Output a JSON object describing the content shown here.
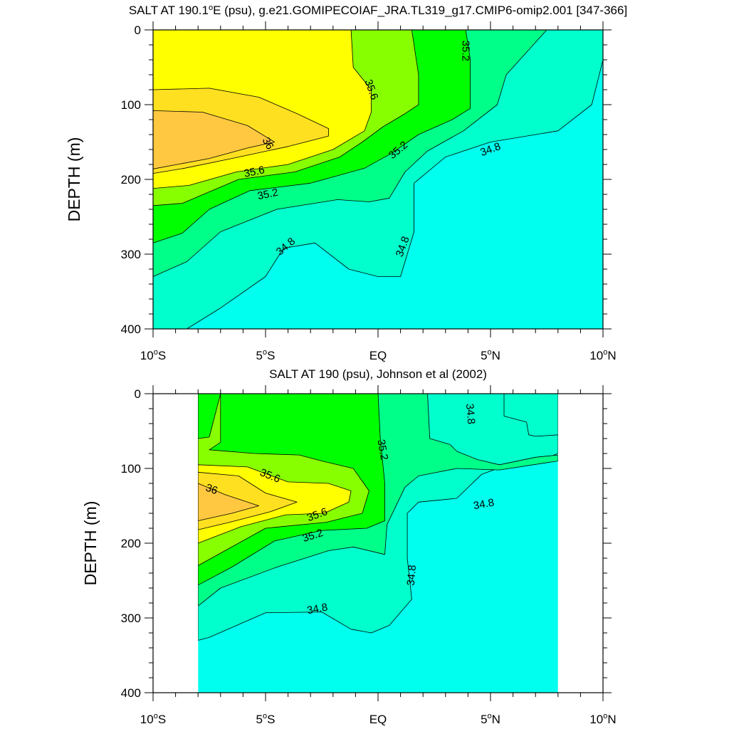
{
  "chart_data": [
    {
      "type": "contour",
      "title": "SALT AT 190.1°E (psu), g.e21.GOMIPECOIAF_JRA.TL319_g17.CMIP6-omip2.001 [347-366]",
      "title_parts": {
        "pre": "SALT AT 190.1",
        "sup": "o",
        "post": "E (psu), g.e21.GOMIPECOIAF_JRA.TL319_g17.CMIP6-omip2.001 [347-366]"
      },
      "ylabel": "DEPTH (m)",
      "xlabel": "",
      "xlim": [
        -10,
        10
      ],
      "ylim": [
        400,
        0
      ],
      "x_ticks": [
        {
          "value": -10,
          "main": "10",
          "sup": "o",
          "tail": "S"
        },
        {
          "value": -5,
          "main": "5",
          "sup": "o",
          "tail": "S"
        },
        {
          "value": 0,
          "main": "EQ",
          "sup": "",
          "tail": ""
        },
        {
          "value": 5,
          "main": "5",
          "sup": "o",
          "tail": "N"
        },
        {
          "value": 10,
          "main": "10",
          "sup": "o",
          "tail": "N"
        }
      ],
      "y_ticks": [
        {
          "value": 0,
          "label": "0"
        },
        {
          "value": 100,
          "label": "100"
        },
        {
          "value": 200,
          "label": "200"
        },
        {
          "value": 300,
          "label": "300"
        },
        {
          "value": 400,
          "label": "400"
        }
      ],
      "data_extent": {
        "x": [
          -10,
          10
        ],
        "depth": [
          0,
          400
        ]
      },
      "contour_levels": [
        34.8,
        35.0,
        35.2,
        35.4,
        35.6,
        35.8,
        36.0
      ],
      "contour_labels": [
        {
          "text": "35.2",
          "x": 3.9,
          "depth": 28,
          "angle": 90
        },
        {
          "text": "35.6",
          "x": -0.3,
          "depth": 80,
          "angle": 70
        },
        {
          "text": "36",
          "x": -4.9,
          "depth": 152,
          "angle": 60
        },
        {
          "text": "35.6",
          "x": -5.5,
          "depth": 190,
          "angle": -12
        },
        {
          "text": "35.2",
          "x": 0.9,
          "depth": 161,
          "angle": -40
        },
        {
          "text": "35.2",
          "x": -4.9,
          "depth": 220,
          "angle": -12
        },
        {
          "text": "34.8",
          "x": 5.0,
          "depth": 160,
          "angle": -20
        },
        {
          "text": "34.8",
          "x": -4.1,
          "depth": 290,
          "angle": -40
        },
        {
          "text": "34.8",
          "x": 1.1,
          "depth": 290,
          "angle": -70
        }
      ],
      "filled_bands": [
        {
          "level": "below 34.8",
          "color": "#00ffee",
          "outline": [
            [
              -10,
              400
            ],
            [
              10,
              400
            ],
            [
              10,
              0
            ],
            [
              -10,
              0
            ]
          ]
        },
        {
          "level": "34.8-35.0",
          "color": "#00ffcc",
          "outline": [
            [
              -10,
              0
            ],
            [
              10,
              0
            ],
            [
              10,
              40
            ],
            [
              9.5,
              100
            ],
            [
              8,
              135
            ],
            [
              5,
              150
            ],
            [
              3,
              170
            ],
            [
              1.6,
              205
            ],
            [
              1.6,
              270
            ],
            [
              1.0,
              330
            ],
            [
              0,
              330
            ],
            [
              -1.3,
              320
            ],
            [
              -2.8,
              285
            ],
            [
              -4.2,
              292
            ],
            [
              -5.0,
              330
            ],
            [
              -7.0,
              372
            ],
            [
              -8.5,
              400
            ],
            [
              -10,
              400
            ]
          ]
        },
        {
          "level": "35.0-35.2",
          "color": "#00ff88",
          "outline": [
            [
              -10,
              0
            ],
            [
              7.5,
              0
            ],
            [
              5.7,
              60
            ],
            [
              5.3,
              100
            ],
            [
              3.8,
              135
            ],
            [
              2.2,
              162
            ],
            [
              1.2,
              190
            ],
            [
              0.5,
              225
            ],
            [
              -0.4,
              230
            ],
            [
              -1.8,
              227
            ],
            [
              -4.5,
              240
            ],
            [
              -7,
              270
            ],
            [
              -8.5,
              310
            ],
            [
              -10,
              330
            ]
          ]
        },
        {
          "level": "35.2-35.4",
          "color": "#00ff00",
          "outline": [
            [
              -10,
              0
            ],
            [
              3.9,
              0
            ],
            [
              4.1,
              40
            ],
            [
              4.1,
              105
            ],
            [
              3.3,
              120
            ],
            [
              1.8,
              140
            ],
            [
              0.6,
              165
            ],
            [
              -0.6,
              185
            ],
            [
              -3,
              205
            ],
            [
              -5.7,
              215
            ],
            [
              -7.5,
              240
            ],
            [
              -8.7,
              272
            ],
            [
              -10,
              285
            ]
          ]
        },
        {
          "level": "35.4-35.6",
          "color": "#88ff00",
          "outline": [
            [
              -10,
              0
            ],
            [
              1.5,
              0
            ],
            [
              1.8,
              60
            ],
            [
              1.8,
              100
            ],
            [
              1.2,
              112
            ],
            [
              0.2,
              130
            ],
            [
              -0.7,
              150
            ],
            [
              -1.7,
              170
            ],
            [
              -3.7,
              190
            ],
            [
              -6.2,
              200
            ],
            [
              -8.7,
              232
            ],
            [
              -10,
              235
            ]
          ]
        },
        {
          "level": "35.6-35.8",
          "color": "#ffff00",
          "outline": [
            [
              -10,
              0
            ],
            [
              -1.2,
              0
            ],
            [
              -1.1,
              50
            ],
            [
              -0.3,
              80
            ],
            [
              -0.3,
              110
            ],
            [
              -0.6,
              135
            ],
            [
              -2,
              160
            ],
            [
              -4,
              180
            ],
            [
              -6.3,
              190
            ],
            [
              -8.4,
              208
            ],
            [
              -10,
              212
            ]
          ]
        },
        {
          "level": "35.8-36.0",
          "color": "#ffe020",
          "outline": [
            [
              -10,
              80
            ],
            [
              -7.5,
              78
            ],
            [
              -5.3,
              90
            ],
            [
              -3.6,
              112
            ],
            [
              -2.2,
              132
            ],
            [
              -2.2,
              142
            ],
            [
              -4,
              156
            ],
            [
              -6.5,
              172
            ],
            [
              -8.6,
              185
            ],
            [
              -10,
              192
            ]
          ]
        },
        {
          "level": "above 36.0",
          "color": "#ffc840",
          "outline": [
            [
              -10,
              108
            ],
            [
              -7.8,
              110
            ],
            [
              -5.8,
              128
            ],
            [
              -4.6,
              150
            ],
            [
              -5.8,
              158
            ],
            [
              -7.5,
              172
            ],
            [
              -10,
              186
            ]
          ]
        }
      ]
    },
    {
      "type": "contour",
      "title": "SALT AT 190 (psu), Johnson et al (2002)",
      "ylabel": "DEPTH (m)",
      "xlabel": "",
      "xlim": [
        -10,
        10
      ],
      "ylim": [
        400,
        0
      ],
      "x_ticks": [
        {
          "value": -10,
          "main": "10",
          "sup": "o",
          "tail": "S"
        },
        {
          "value": -5,
          "main": "5",
          "sup": "o",
          "tail": "S"
        },
        {
          "value": 0,
          "main": "EQ",
          "sup": "",
          "tail": ""
        },
        {
          "value": 5,
          "main": "5",
          "sup": "o",
          "tail": "N"
        },
        {
          "value": 10,
          "main": "10",
          "sup": "o",
          "tail": "N"
        }
      ],
      "y_ticks": [
        {
          "value": 0,
          "label": "0"
        },
        {
          "value": 100,
          "label": "100"
        },
        {
          "value": 200,
          "label": "200"
        },
        {
          "value": 300,
          "label": "300"
        },
        {
          "value": 400,
          "label": "400"
        }
      ],
      "data_extent": {
        "x": [
          -8,
          8
        ],
        "depth": [
          0,
          400
        ]
      },
      "contour_levels": [
        34.8,
        35.0,
        35.2,
        35.4,
        35.6,
        35.8,
        36.0
      ],
      "contour_labels": [
        {
          "text": "34.8",
          "x": 4.1,
          "depth": 27,
          "angle": 85
        },
        {
          "text": "35.2",
          "x": 0.2,
          "depth": 75,
          "angle": 80
        },
        {
          "text": "35.6",
          "x": -4.8,
          "depth": 110,
          "angle": 22
        },
        {
          "text": "36",
          "x": -7.4,
          "depth": 128,
          "angle": 20
        },
        {
          "text": "35.6",
          "x": -2.7,
          "depth": 162,
          "angle": -20
        },
        {
          "text": "35.2",
          "x": -2.9,
          "depth": 190,
          "angle": -18
        },
        {
          "text": "34.8",
          "x": 4.7,
          "depth": 148,
          "angle": -10
        },
        {
          "text": "34.8",
          "x": 1.5,
          "depth": 243,
          "angle": -85
        },
        {
          "text": "34.8",
          "x": -2.7,
          "depth": 288,
          "angle": -10
        }
      ],
      "filled_bands": [
        {
          "level": "below 34.8",
          "color": "#00ffee",
          "outline": [
            [
              -8,
              400
            ],
            [
              8,
              400
            ],
            [
              8,
              0
            ],
            [
              -8,
              0
            ]
          ]
        },
        {
          "level": "34.8-35.0",
          "color": "#00ffcc",
          "outline": [
            [
              -8,
              0
            ],
            [
              8,
              0
            ],
            [
              8,
              55
            ],
            [
              7,
              57
            ],
            [
              6.7,
              55
            ],
            [
              6.6,
              38
            ],
            [
              5.6,
              30
            ],
            [
              5.6,
              0
            ],
            [
              8,
              0
            ],
            [
              8,
              80
            ],
            [
              7,
              92
            ],
            [
              5.5,
              98
            ],
            [
              4.6,
              108
            ],
            [
              3.5,
              140
            ],
            [
              1.8,
              145
            ],
            [
              1.3,
              160
            ],
            [
              1.3,
              220
            ],
            [
              1.5,
              275
            ],
            [
              0.5,
              310
            ],
            [
              -0.3,
              320
            ],
            [
              -1.2,
              315
            ],
            [
              -2.5,
              292
            ],
            [
              -5,
              293
            ],
            [
              -7.5,
              326
            ],
            [
              -8,
              330
            ]
          ]
        },
        {
          "level": "35.0-35.2",
          "color": "#00ff88",
          "outline": [
            [
              -8,
              0
            ],
            [
              2.2,
              0
            ],
            [
              2.3,
              60
            ],
            [
              3.2,
              68
            ],
            [
              3.5,
              77
            ],
            [
              4.4,
              88
            ],
            [
              5.4,
              95
            ],
            [
              7.0,
              85
            ],
            [
              8,
              82
            ],
            [
              8,
              90
            ],
            [
              5.4,
              102
            ],
            [
              3.5,
              100
            ],
            [
              1.8,
              110
            ],
            [
              1.2,
              125
            ],
            [
              0.4,
              175
            ],
            [
              0.3,
              215
            ],
            [
              -1.1,
              205
            ],
            [
              -2.2,
              210
            ],
            [
              -4.5,
              232
            ],
            [
              -7,
              260
            ],
            [
              -8,
              284
            ]
          ]
        },
        {
          "level": "35.2-35.4",
          "color": "#00ff00",
          "outline": [
            [
              -8,
              0
            ],
            [
              0,
              0
            ],
            [
              0.1,
              60
            ],
            [
              0.3,
              120
            ],
            [
              0.3,
              170
            ],
            [
              -0.5,
              180
            ],
            [
              -2.5,
              183
            ],
            [
              -4.6,
              197
            ],
            [
              -6.5,
              232
            ],
            [
              -8,
              256
            ]
          ]
        },
        {
          "level": "35.4-35.6",
          "color": "#88ff00",
          "outline": [
            [
              -8,
              60
            ],
            [
              -7.5,
              58
            ],
            [
              -7.0,
              0
            ],
            [
              -7.0,
              65
            ],
            [
              -7.5,
              75
            ],
            [
              -5.5,
              80
            ],
            [
              -3.5,
              82
            ],
            [
              -2.5,
              90
            ],
            [
              -1.1,
              100
            ],
            [
              -0.4,
              130
            ],
            [
              -0.7,
              160
            ],
            [
              -2.3,
              172
            ],
            [
              -5,
              180
            ],
            [
              -6.8,
              210
            ],
            [
              -8,
              230
            ]
          ]
        },
        {
          "level": "35.6-35.8",
          "color": "#ffff00",
          "outline": [
            [
              -8,
              95
            ],
            [
              -5.8,
              98
            ],
            [
              -4.0,
              118
            ],
            [
              -2.2,
              120
            ],
            [
              -1.2,
              130
            ],
            [
              -1.3,
              145
            ],
            [
              -2.4,
              160
            ],
            [
              -4.1,
              162
            ],
            [
              -6.1,
              178
            ],
            [
              -8,
              200
            ]
          ]
        },
        {
          "level": "35.8-36.0",
          "color": "#ffe020",
          "outline": [
            [
              -8,
              105
            ],
            [
              -6.2,
              110
            ],
            [
              -5.0,
              133
            ],
            [
              -3.6,
              145
            ],
            [
              -4.8,
              158
            ],
            [
              -6.6,
              172
            ],
            [
              -8,
              182
            ]
          ]
        },
        {
          "level": "above 36.0",
          "color": "#ffc840",
          "outline": [
            [
              -8,
              120
            ],
            [
              -6.8,
              135
            ],
            [
              -5.3,
              150
            ],
            [
              -6.5,
              160
            ],
            [
              -8,
              170
            ]
          ]
        }
      ]
    }
  ]
}
